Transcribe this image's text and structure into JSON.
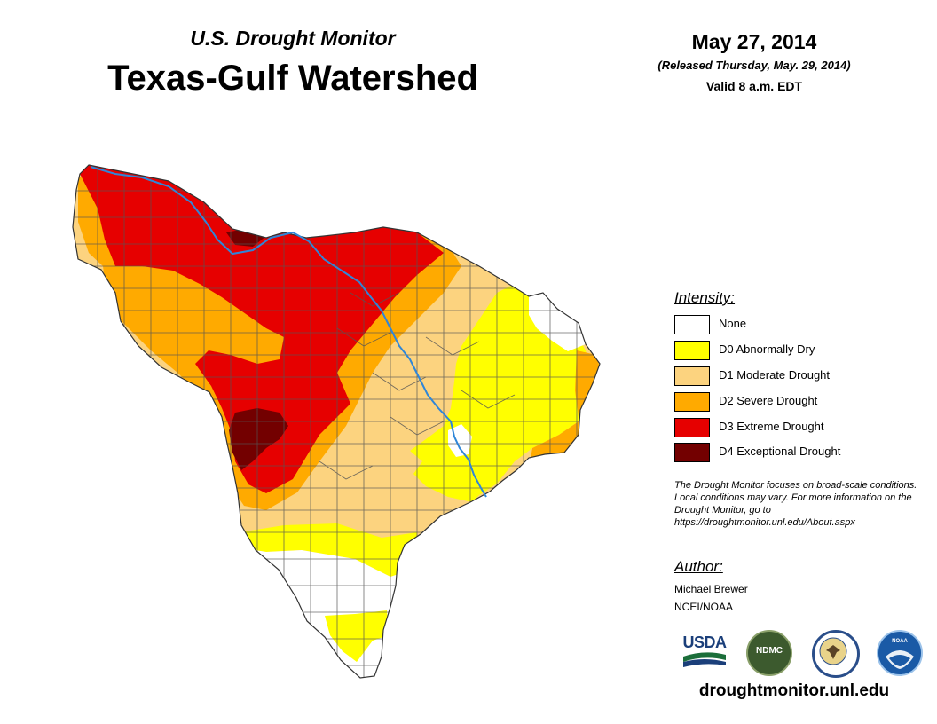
{
  "header": {
    "subtitle": "U.S. Drought Monitor",
    "title": "Texas-Gulf Watershed",
    "date": "May 27, 2014",
    "released": "(Released Thursday, May. 29, 2014)",
    "valid": "Valid 8 a.m. EDT"
  },
  "legend": {
    "title": "Intensity:",
    "items": [
      {
        "label": "None",
        "color": "#ffffff"
      },
      {
        "label": "D0 Abnormally Dry",
        "color": "#ffff00"
      },
      {
        "label": "D1 Moderate Drought",
        "color": "#fcd37f"
      },
      {
        "label": "D2 Severe Drought",
        "color": "#ffaa00"
      },
      {
        "label": "D3 Extreme Drought",
        "color": "#e60000"
      },
      {
        "label": "D4 Exceptional Drought",
        "color": "#730000"
      }
    ]
  },
  "note": "The Drought Monitor focuses on broad-scale conditions. Local conditions may vary. For more information on the Drought Monitor, go to https://droughtmonitor.unl.edu/About.aspx",
  "author": {
    "title": "Author:",
    "name": "Michael Brewer",
    "org": "NCEI/NOAA"
  },
  "logos": {
    "usda": "USDA",
    "ndmc": "NDMC",
    "noaa": "NOAA"
  },
  "footer": {
    "url": "droughtmonitor.unl.edu"
  },
  "colors": {
    "river": "#2f86d8",
    "county_lines": "#555555"
  }
}
